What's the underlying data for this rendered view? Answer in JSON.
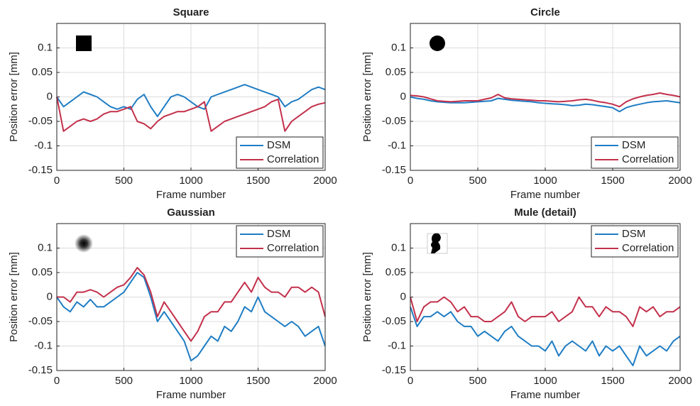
{
  "chart_data": [
    {
      "type": "line",
      "title": "Square",
      "xlabel": "Frame number",
      "ylabel": "Position error [mm]",
      "x": [
        0,
        50,
        100,
        150,
        200,
        250,
        300,
        350,
        400,
        450,
        500,
        550,
        600,
        650,
        700,
        750,
        800,
        850,
        900,
        950,
        1000,
        1050,
        1100,
        1150,
        1200,
        1250,
        1300,
        1350,
        1400,
        1450,
        1500,
        1550,
        1600,
        1650,
        1700,
        1750,
        1800,
        1850,
        1900,
        1950,
        2000
      ],
      "series": [
        {
          "name": "DSM",
          "color": "#1f7dc4",
          "values": [
            0,
            -0.02,
            -0.01,
            0,
            0.01,
            0.005,
            0,
            -0.01,
            -0.02,
            -0.025,
            -0.02,
            -0.025,
            -0.005,
            0.005,
            -0.02,
            -0.04,
            -0.02,
            0,
            0.005,
            0,
            -0.01,
            -0.02,
            -0.025,
            0,
            0.005,
            0.01,
            0.015,
            0.02,
            0.025,
            0.02,
            0.015,
            0.01,
            0.005,
            0,
            -0.02,
            -0.01,
            -0.005,
            0.005,
            0.015,
            0.02,
            0.015
          ]
        },
        {
          "name": "Correlation",
          "color": "#c3304b",
          "values": [
            0,
            -0.07,
            -0.06,
            -0.05,
            -0.045,
            -0.05,
            -0.045,
            -0.035,
            -0.03,
            -0.03,
            -0.025,
            -0.02,
            -0.05,
            -0.055,
            -0.065,
            -0.05,
            -0.04,
            -0.035,
            -0.03,
            -0.03,
            -0.025,
            -0.02,
            -0.01,
            -0.07,
            -0.06,
            -0.05,
            -0.045,
            -0.04,
            -0.035,
            -0.03,
            -0.025,
            -0.02,
            -0.01,
            -0.005,
            -0.07,
            -0.05,
            -0.04,
            -0.03,
            -0.02,
            -0.015,
            -0.012
          ]
        }
      ],
      "xlim": [
        0,
        2000
      ],
      "xticks": [
        0,
        500,
        1000,
        1500,
        2000
      ],
      "ylim": [
        -0.15,
        0.15
      ],
      "yticks": [
        -0.15,
        -0.1,
        -0.05,
        0,
        0.05,
        0.1
      ],
      "grid": true,
      "legend": "lower right"
    },
    {
      "type": "line",
      "title": "Circle",
      "xlabel": "Frame number",
      "ylabel": "Position error [mm]",
      "x": [
        0,
        50,
        100,
        150,
        200,
        250,
        300,
        350,
        400,
        450,
        500,
        550,
        600,
        650,
        700,
        750,
        800,
        850,
        900,
        950,
        1000,
        1050,
        1100,
        1150,
        1200,
        1250,
        1300,
        1350,
        1400,
        1450,
        1500,
        1550,
        1600,
        1650,
        1700,
        1750,
        1800,
        1850,
        1900,
        1950,
        2000
      ],
      "series": [
        {
          "name": "DSM",
          "color": "#1f7dc4",
          "values": [
            0,
            -0.003,
            -0.005,
            -0.008,
            -0.01,
            -0.011,
            -0.012,
            -0.012,
            -0.012,
            -0.011,
            -0.01,
            -0.009,
            -0.008,
            -0.003,
            -0.005,
            -0.007,
            -0.008,
            -0.009,
            -0.01,
            -0.012,
            -0.013,
            -0.014,
            -0.015,
            -0.016,
            -0.018,
            -0.017,
            -0.015,
            -0.016,
            -0.018,
            -0.02,
            -0.022,
            -0.03,
            -0.022,
            -0.018,
            -0.015,
            -0.012,
            -0.01,
            -0.009,
            -0.008,
            -0.01,
            -0.012
          ]
        },
        {
          "name": "Correlation",
          "color": "#c3304b",
          "values": [
            0.003,
            0.002,
            0,
            -0.004,
            -0.008,
            -0.009,
            -0.01,
            -0.009,
            -0.008,
            -0.008,
            -0.008,
            -0.005,
            -0.002,
            0.005,
            -0.002,
            -0.004,
            -0.005,
            -0.006,
            -0.007,
            -0.008,
            -0.008,
            -0.009,
            -0.01,
            -0.009,
            -0.008,
            -0.006,
            -0.005,
            -0.007,
            -0.01,
            -0.012,
            -0.015,
            -0.02,
            -0.01,
            -0.004,
            0,
            0.003,
            0.005,
            0.008,
            0.005,
            0.003,
            0
          ]
        }
      ],
      "xlim": [
        0,
        2000
      ],
      "xticks": [
        0,
        500,
        1000,
        1500,
        2000
      ],
      "ylim": [
        -0.15,
        0.15
      ],
      "yticks": [
        -0.15,
        -0.1,
        -0.05,
        0,
        0.05,
        0.1
      ],
      "grid": true,
      "legend": "lower right"
    },
    {
      "type": "line",
      "title": "Gaussian",
      "xlabel": "Frame number",
      "ylabel": "Position error [mm]",
      "x": [
        0,
        50,
        100,
        150,
        200,
        250,
        300,
        350,
        400,
        450,
        500,
        550,
        600,
        650,
        700,
        750,
        800,
        850,
        900,
        950,
        1000,
        1050,
        1100,
        1150,
        1200,
        1250,
        1300,
        1350,
        1400,
        1450,
        1500,
        1550,
        1600,
        1650,
        1700,
        1750,
        1800,
        1850,
        1900,
        1950,
        2000
      ],
      "series": [
        {
          "name": "DSM",
          "color": "#1f7dc4",
          "values": [
            0,
            -0.02,
            -0.03,
            -0.01,
            -0.02,
            -0.005,
            -0.02,
            -0.02,
            -0.01,
            0,
            0.01,
            0.03,
            0.05,
            0.04,
            0,
            -0.05,
            -0.03,
            -0.05,
            -0.07,
            -0.09,
            -0.13,
            -0.12,
            -0.1,
            -0.08,
            -0.09,
            -0.06,
            -0.07,
            -0.05,
            -0.02,
            -0.03,
            0,
            -0.03,
            -0.04,
            -0.05,
            -0.06,
            -0.05,
            -0.06,
            -0.08,
            -0.07,
            -0.06,
            -0.1
          ]
        },
        {
          "name": "Correlation",
          "color": "#c3304b",
          "values": [
            0,
            0,
            -0.01,
            0.01,
            0.01,
            0.015,
            0.01,
            0,
            0.01,
            0.02,
            0.025,
            0.04,
            0.06,
            0.045,
            0.01,
            -0.04,
            -0.01,
            -0.03,
            -0.05,
            -0.07,
            -0.09,
            -0.07,
            -0.04,
            -0.03,
            -0.03,
            -0.01,
            -0.01,
            0.01,
            0.03,
            0.01,
            0.04,
            0.02,
            0.01,
            0.01,
            0,
            0.02,
            0.02,
            0.01,
            0.02,
            0.01,
            -0.04
          ]
        }
      ],
      "xlim": [
        0,
        2000
      ],
      "xticks": [
        0,
        500,
        1000,
        1500,
        2000
      ],
      "ylim": [
        -0.15,
        0.15
      ],
      "yticks": [
        -0.15,
        -0.1,
        -0.05,
        0,
        0.05,
        0.1
      ],
      "grid": true,
      "legend": "upper right"
    },
    {
      "type": "line",
      "title": "Mule (detail)",
      "xlabel": "Frame number",
      "ylabel": "Position error [mm]",
      "x": [
        0,
        50,
        100,
        150,
        200,
        250,
        300,
        350,
        400,
        450,
        500,
        550,
        600,
        650,
        700,
        750,
        800,
        850,
        900,
        950,
        1000,
        1050,
        1100,
        1150,
        1200,
        1250,
        1300,
        1350,
        1400,
        1450,
        1500,
        1550,
        1600,
        1650,
        1700,
        1750,
        1800,
        1850,
        1900,
        1950,
        2000
      ],
      "series": [
        {
          "name": "DSM",
          "color": "#1f7dc4",
          "values": [
            -0.02,
            -0.06,
            -0.04,
            -0.04,
            -0.03,
            -0.04,
            -0.03,
            -0.05,
            -0.06,
            -0.06,
            -0.08,
            -0.07,
            -0.08,
            -0.09,
            -0.07,
            -0.06,
            -0.08,
            -0.09,
            -0.1,
            -0.1,
            -0.11,
            -0.09,
            -0.12,
            -0.1,
            -0.09,
            -0.1,
            -0.11,
            -0.09,
            -0.12,
            -0.1,
            -0.11,
            -0.1,
            -0.12,
            -0.14,
            -0.1,
            -0.12,
            -0.11,
            -0.1,
            -0.11,
            -0.09,
            -0.08
          ]
        },
        {
          "name": "Correlation",
          "color": "#c3304b",
          "values": [
            0,
            -0.05,
            -0.02,
            -0.01,
            -0.01,
            0,
            -0.01,
            -0.03,
            -0.02,
            -0.04,
            -0.04,
            -0.05,
            -0.05,
            -0.04,
            -0.03,
            -0.01,
            -0.04,
            -0.05,
            -0.04,
            -0.04,
            -0.04,
            -0.03,
            -0.05,
            -0.04,
            -0.03,
            0,
            -0.02,
            -0.02,
            -0.04,
            -0.02,
            -0.03,
            -0.03,
            -0.04,
            -0.06,
            -0.02,
            -0.03,
            -0.02,
            -0.04,
            -0.03,
            -0.03,
            -0.02
          ]
        }
      ],
      "xlim": [
        0,
        2000
      ],
      "xticks": [
        0,
        500,
        1000,
        1500,
        2000
      ],
      "ylim": [
        -0.15,
        0.15
      ],
      "yticks": [
        -0.15,
        -0.1,
        -0.05,
        0,
        0.05,
        0.1
      ],
      "grid": true,
      "legend": "upper right"
    }
  ]
}
